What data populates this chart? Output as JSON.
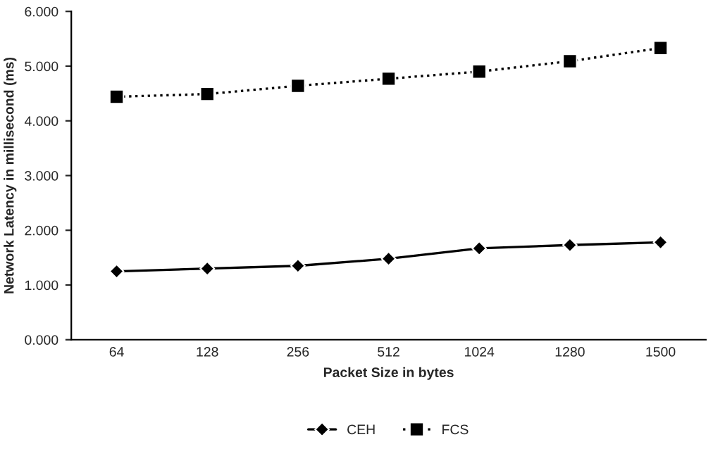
{
  "chart_data": {
    "type": "line",
    "xlabel": "Packet Size in bytes",
    "ylabel": "Network Latency in millisecond (ms)",
    "categories": [
      "64",
      "128",
      "256",
      "512",
      "1024",
      "1280",
      "1500"
    ],
    "series": [
      {
        "name": "CEH",
        "color": "#000000",
        "marker": "diamond",
        "line_style": "solid",
        "values": [
          1.25,
          1.3,
          1.35,
          1.48,
          1.67,
          1.73,
          1.78
        ]
      },
      {
        "name": "FCS",
        "color": "#000000",
        "marker": "square",
        "line_style": "dotted",
        "values": [
          4.44,
          4.49,
          4.64,
          4.77,
          4.9,
          5.09,
          5.33
        ]
      }
    ],
    "ylim": [
      0,
      6
    ],
    "yticks": [
      {
        "value": 0,
        "label": "0.000"
      },
      {
        "value": 1,
        "label": "1.000"
      },
      {
        "value": 2,
        "label": "2.000"
      },
      {
        "value": 3,
        "label": "3.000"
      },
      {
        "value": 4,
        "label": "4.000"
      },
      {
        "value": 5,
        "label": "5.000"
      },
      {
        "value": 6,
        "label": "6.000"
      }
    ],
    "grid": false,
    "legend": "bottom"
  }
}
